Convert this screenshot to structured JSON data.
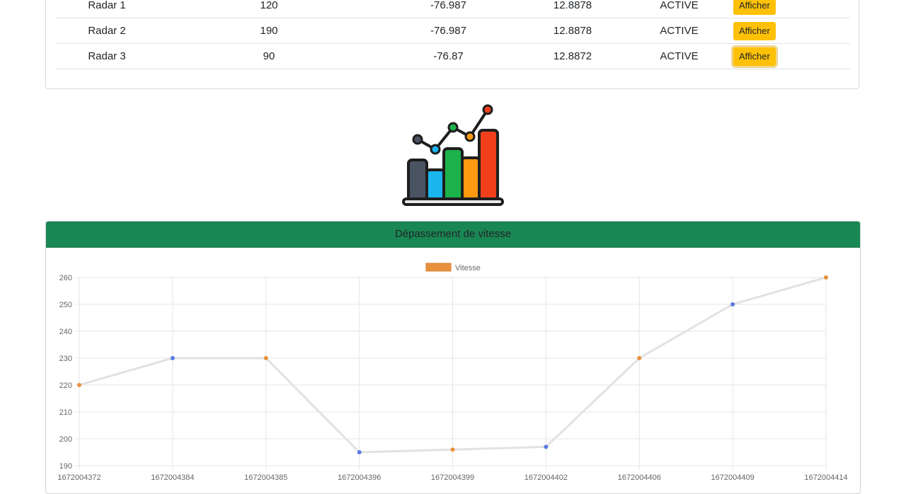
{
  "radars": [
    {
      "name": "Radar 1",
      "speed": "120",
      "longitude": "-76.987",
      "latitude": "12.8878",
      "status": "ACTIVE",
      "action": "Afficher"
    },
    {
      "name": "Radar 2",
      "speed": "190",
      "longitude": "-76.987",
      "latitude": "12.8878",
      "status": "ACTIVE",
      "action": "Afficher"
    },
    {
      "name": "Radar 3",
      "speed": "90",
      "longitude": "-76.87",
      "latitude": "12.8872",
      "status": "ACTIVE",
      "action": "Afficher"
    }
  ],
  "colors": {
    "header_green": "#198754",
    "button_yellow": "#ffc107",
    "point_orange": "#e8913c",
    "point_blue": "#5b7be0",
    "line_gray": "#e2e2e2"
  },
  "chart_card": {
    "title": "Dépassement de vitesse"
  },
  "chart_data": {
    "type": "line",
    "x": [
      "1672004372",
      "1672004384",
      "1672004385",
      "1672004396",
      "1672004399",
      "1672004402",
      "1672004406",
      "1672004409",
      "1672004414"
    ],
    "series": [
      {
        "name": "Vitesse",
        "values": [
          220,
          230,
          230,
          195,
          196,
          197,
          230,
          250,
          260
        ]
      }
    ],
    "point_colors": [
      "orange",
      "blue",
      "orange",
      "blue",
      "orange",
      "blue",
      "orange",
      "blue",
      "orange"
    ],
    "ylim": [
      190,
      260
    ],
    "yticks": [
      190,
      200,
      210,
      220,
      230,
      240,
      250,
      260
    ],
    "legend": "top-center",
    "grid": true
  }
}
